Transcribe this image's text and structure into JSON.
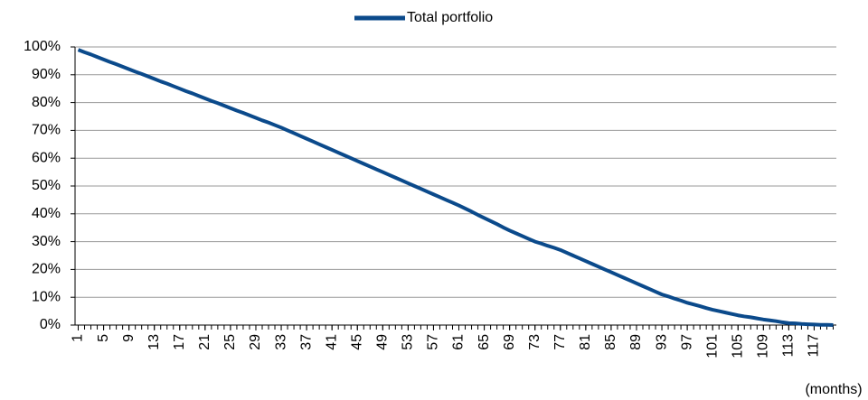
{
  "chart_data": {
    "type": "line",
    "x_label": "(months)",
    "x": [
      1,
      2,
      3,
      4,
      5,
      6,
      7,
      8,
      9,
      10,
      11,
      12,
      13,
      14,
      15,
      16,
      17,
      18,
      19,
      20,
      21,
      22,
      23,
      24,
      25,
      26,
      27,
      28,
      29,
      30,
      31,
      32,
      33,
      34,
      35,
      36,
      37,
      38,
      39,
      40,
      41,
      42,
      43,
      44,
      45,
      46,
      47,
      48,
      49,
      50,
      51,
      52,
      53,
      54,
      55,
      56,
      57,
      58,
      59,
      60,
      61,
      62,
      63,
      64,
      65,
      66,
      67,
      68,
      69,
      70,
      71,
      72,
      73,
      74,
      75,
      76,
      77,
      78,
      79,
      80,
      81,
      82,
      83,
      84,
      85,
      86,
      87,
      88,
      89,
      90,
      91,
      92,
      93,
      94,
      95,
      96,
      97,
      98,
      99,
      100,
      101,
      102,
      103,
      104,
      105,
      106,
      107,
      108,
      109,
      110,
      111,
      112,
      113,
      114,
      115,
      116,
      117,
      118,
      119,
      120
    ],
    "series": [
      {
        "name": "Total portfolio",
        "color": "#0b4a8b",
        "values": [
          99,
          98.1,
          97.3,
          96.4,
          95.5,
          94.6,
          93.8,
          92.9,
          92,
          91.1,
          90.3,
          89.4,
          88.5,
          87.6,
          86.8,
          85.9,
          85,
          84.1,
          83.3,
          82.4,
          81.5,
          80.6,
          79.8,
          78.9,
          78,
          77.1,
          76.3,
          75.4,
          74.5,
          73.6,
          72.8,
          71.9,
          71,
          70,
          69,
          68,
          67,
          66,
          65,
          64,
          63,
          62,
          61,
          60,
          59,
          58,
          57,
          56,
          55,
          54,
          53,
          52,
          51,
          50,
          49,
          48,
          47,
          46,
          45,
          44,
          43,
          41.9,
          40.8,
          39.6,
          38.5,
          37.4,
          36.3,
          35.1,
          34,
          33,
          32,
          31,
          30,
          29.3,
          28.5,
          27.8,
          27,
          26,
          25,
          24,
          23,
          22,
          21,
          20,
          19,
          18,
          17,
          16,
          15,
          14,
          13,
          12,
          11,
          10.3,
          9.5,
          8.8,
          8,
          7.4,
          6.8,
          6.1,
          5.5,
          5,
          4.5,
          4,
          3.5,
          3.1,
          2.8,
          2.4,
          2,
          1.7,
          1.4,
          1,
          0.7,
          0.6,
          0.4,
          0.3,
          0.2,
          0.1,
          0.1,
          0
        ]
      }
    ],
    "xlim": [
      0.5,
      120.5
    ],
    "xticks": [
      1,
      5,
      9,
      13,
      17,
      21,
      25,
      29,
      33,
      37,
      41,
      45,
      49,
      53,
      57,
      61,
      65,
      69,
      73,
      77,
      81,
      85,
      89,
      93,
      97,
      101,
      105,
      109,
      113,
      117
    ],
    "ylim": [
      0,
      100
    ],
    "yticks": [
      {
        "value": 0,
        "label": "0%"
      },
      {
        "value": 10,
        "label": "10%"
      },
      {
        "value": 20,
        "label": "20%"
      },
      {
        "value": 30,
        "label": "30%"
      },
      {
        "value": 40,
        "label": "40%"
      },
      {
        "value": 50,
        "label": "50%"
      },
      {
        "value": 60,
        "label": "60%"
      },
      {
        "value": 70,
        "label": "70%"
      },
      {
        "value": 80,
        "label": "80%"
      },
      {
        "value": 90,
        "label": "90%"
      },
      {
        "value": 100,
        "label": "100%"
      }
    ],
    "grid": true,
    "legend": "top"
  }
}
